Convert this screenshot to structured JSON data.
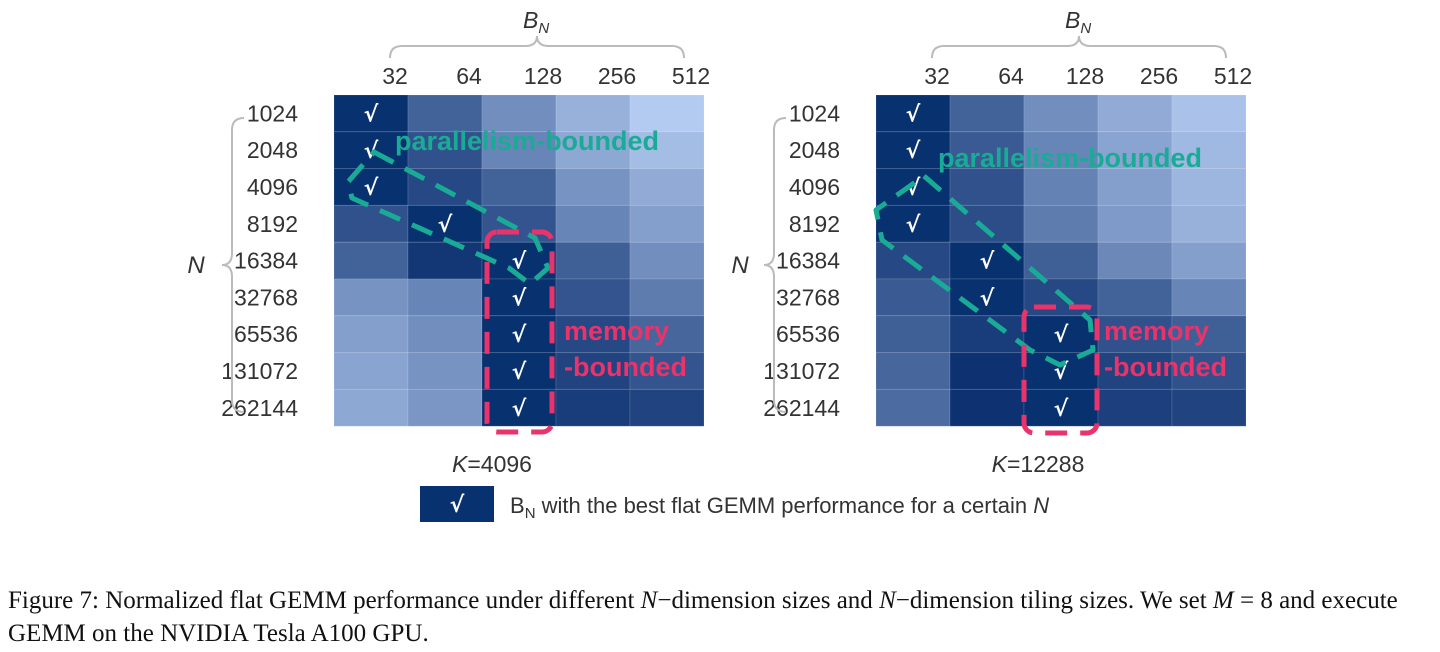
{
  "chart_data": [
    {
      "type": "heatmap",
      "title": "K=4096",
      "title_var": "K",
      "title_value": "=4096",
      "xlabel_var": "B",
      "xlabel_sub": "N",
      "ylabel": "N",
      "x_tick_labels": [
        "32",
        "64",
        "128",
        "256",
        "512"
      ],
      "y_tick_labels": [
        "1024",
        "2048",
        "4096",
        "8192",
        "16384",
        "32768",
        "65536",
        "131072",
        "262144"
      ],
      "values": [
        [
          1.0,
          0.7,
          0.45,
          0.25,
          0.1
        ],
        [
          1.0,
          0.8,
          0.5,
          0.3,
          0.18
        ],
        [
          1.0,
          0.85,
          0.7,
          0.42,
          0.28
        ],
        [
          0.8,
          1.0,
          0.78,
          0.5,
          0.35
        ],
        [
          0.7,
          0.95,
          1.0,
          0.72,
          0.45
        ],
        [
          0.42,
          0.5,
          1.0,
          0.78,
          0.55
        ],
        [
          0.35,
          0.45,
          1.0,
          0.85,
          0.68
        ],
        [
          0.32,
          0.42,
          1.0,
          0.88,
          0.78
        ],
        [
          0.3,
          0.4,
          1.0,
          0.92,
          0.88
        ]
      ],
      "best_col": [
        0,
        0,
        0,
        1,
        2,
        2,
        2,
        2,
        2
      ],
      "annotations": [
        {
          "text": "parallelism-bounded",
          "color": "#1aab96"
        },
        {
          "text": "memory",
          "color": "#e8336b"
        },
        {
          "text": "-bounded",
          "color": "#e8336b"
        }
      ]
    },
    {
      "type": "heatmap",
      "title": "K=12288",
      "title_var": "K",
      "title_value": "=12288",
      "xlabel_var": "B",
      "xlabel_sub": "N",
      "ylabel": "N",
      "x_tick_labels": [
        "32",
        "64",
        "128",
        "256",
        "512"
      ],
      "y_tick_labels": [
        "1024",
        "2048",
        "4096",
        "8192",
        "16384",
        "32768",
        "65536",
        "131072",
        "262144"
      ],
      "values": [
        [
          1.0,
          0.7,
          0.45,
          0.28,
          0.15
        ],
        [
          1.0,
          0.75,
          0.5,
          0.32,
          0.2
        ],
        [
          1.0,
          0.8,
          0.52,
          0.35,
          0.22
        ],
        [
          1.0,
          0.82,
          0.55,
          0.38,
          0.25
        ],
        [
          0.85,
          1.0,
          0.72,
          0.48,
          0.35
        ],
        [
          0.75,
          1.0,
          0.85,
          0.7,
          0.5
        ],
        [
          0.72,
          0.92,
          1.0,
          0.8,
          0.72
        ],
        [
          0.68,
          0.98,
          1.0,
          0.88,
          0.8
        ],
        [
          0.65,
          0.98,
          1.0,
          0.9,
          0.88
        ]
      ],
      "best_col": [
        0,
        0,
        0,
        0,
        1,
        1,
        2,
        2,
        2
      ],
      "annotations": [
        {
          "text": "parallelism-bounded",
          "color": "#1aab96"
        },
        {
          "text": "memory",
          "color": "#e8336b"
        },
        {
          "text": "-bounded",
          "color": "#e8336b"
        }
      ]
    }
  ],
  "check_symbol": "√",
  "legend": {
    "symbol": "√",
    "var": "B",
    "sub": "N",
    "text": " with the best flat GEMM performance for a certain ",
    "tail": "N"
  },
  "colors": {
    "high": "#0a2e6e",
    "low": "#c6dcff",
    "best": "#08326f",
    "teal": "#1aab96",
    "pink": "#e8336b"
  },
  "caption": {
    "p1": "Figure 7: Normalized flat GEMM performance under different ",
    "v1": "N",
    "p2": "−dimension sizes and ",
    "v2": "N",
    "p3": "−dimension tiling sizes. We set ",
    "v3": "M",
    "p4": " = 8 and execute GEMM on the NVIDIA Tesla A100 GPU."
  }
}
